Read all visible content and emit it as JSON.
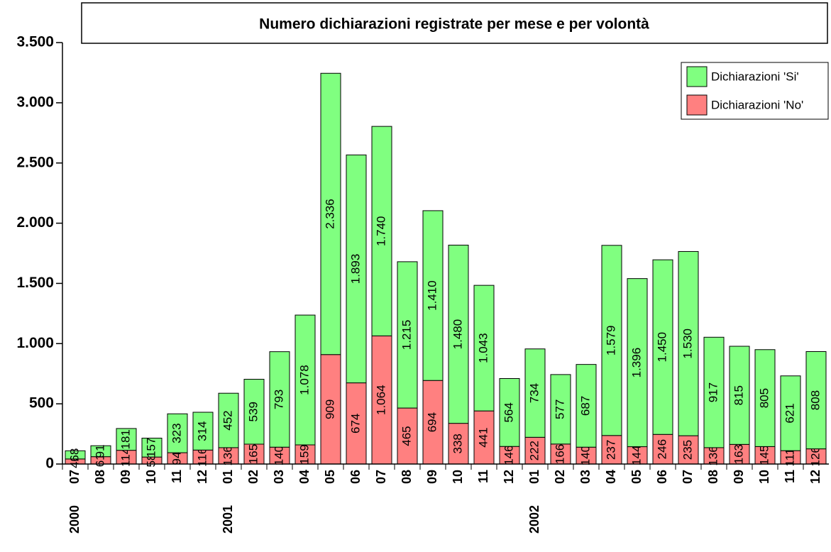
{
  "chart_data": {
    "type": "stacked_bar",
    "title": "Numero dichiarazioni registrate per mese e per volontà",
    "categories": [
      "07",
      "08",
      "09",
      "10",
      "11",
      "12",
      "01",
      "02",
      "03",
      "04",
      "05",
      "06",
      "07",
      "08",
      "09",
      "10",
      "11",
      "12",
      "01",
      "02",
      "03",
      "04",
      "05",
      "06",
      "07",
      "08",
      "09",
      "10",
      "11",
      "12"
    ],
    "category_groups": [
      "2000",
      null,
      null,
      null,
      null,
      null,
      "2001",
      null,
      null,
      null,
      null,
      null,
      null,
      null,
      null,
      null,
      null,
      null,
      "2002",
      null,
      null,
      null,
      null,
      null,
      null,
      null,
      null,
      null,
      null,
      null
    ],
    "series": [
      {
        "name": "Dichiarazioni 'No'",
        "color": "#ff8080",
        "values": [
          42,
          61,
          114,
          58,
          94,
          116,
          136,
          165,
          140,
          159,
          909,
          674,
          1064,
          465,
          694,
          338,
          441,
          146,
          222,
          166,
          140,
          237,
          144,
          246,
          235,
          136,
          163,
          145,
          111,
          126
        ],
        "value_labels": [
          "42",
          "61",
          "114",
          "58",
          "94",
          "116",
          "136",
          "165",
          "140",
          "159",
          "909",
          "674",
          "1.064",
          "465",
          "694",
          "338",
          "441",
          "146",
          "222",
          "166",
          "140",
          "237",
          "144",
          "246",
          "235",
          "136",
          "163",
          "145",
          "111",
          "126"
        ]
      },
      {
        "name": "Dichiarazioni 'Si'",
        "color": "#80ff80",
        "values": [
          68,
          91,
          181,
          157,
          323,
          314,
          452,
          539,
          793,
          1078,
          2336,
          1893,
          1740,
          1215,
          1410,
          1480,
          1043,
          564,
          734,
          577,
          687,
          1579,
          1396,
          1450,
          1530,
          917,
          815,
          805,
          621,
          808
        ],
        "value_labels": [
          "68",
          "91",
          "181",
          "157",
          "323",
          "314",
          "452",
          "539",
          "793",
          "1.078",
          "2.336",
          "1.893",
          "1.740",
          "1.215",
          "1.410",
          "1.480",
          "1.043",
          "564",
          "734",
          "577",
          "687",
          "1.579",
          "1.396",
          "1.450",
          "1.530",
          "917",
          "815",
          "805",
          "621",
          "808"
        ]
      }
    ],
    "ylim": [
      0,
      3500
    ],
    "yticks": [
      0,
      500,
      {
        "value": 1000,
        "label": "1.000"
      },
      {
        "value": 1500,
        "label": "1.500"
      },
      {
        "value": 2000,
        "label": "2.000"
      },
      {
        "value": 2500,
        "label": "2.500"
      },
      {
        "value": 3000,
        "label": "3.000"
      },
      {
        "value": 3500,
        "label": "3.500"
      }
    ],
    "legend": "top-right"
  }
}
